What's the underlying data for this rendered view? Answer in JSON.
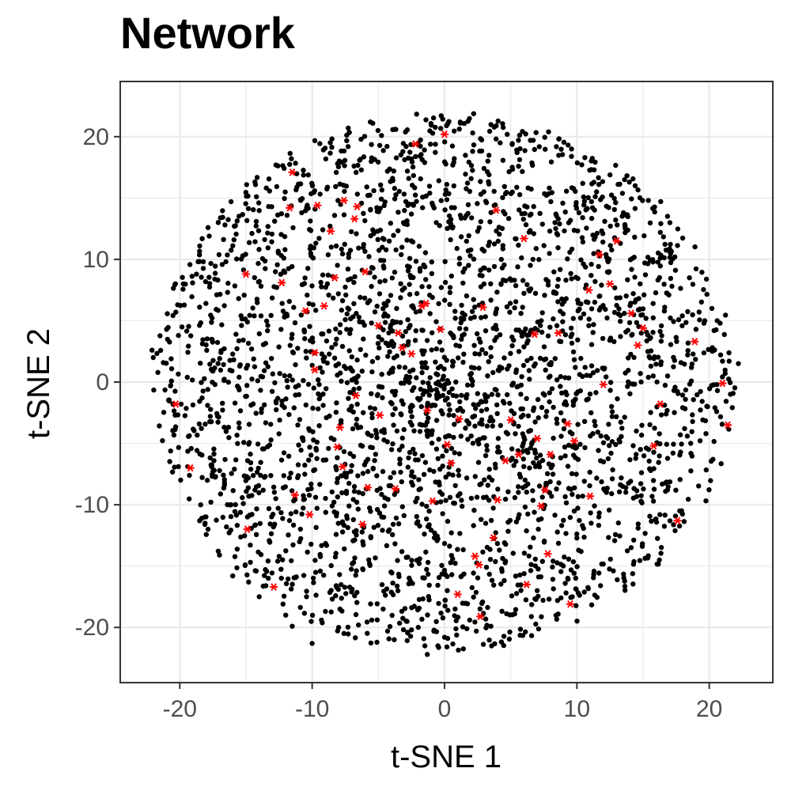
{
  "chart_data": {
    "type": "scatter",
    "title": "Network",
    "xlabel": "t-SNE 1",
    "ylabel": "t-SNE 2",
    "xlim": [
      -24.5,
      24.8
    ],
    "ylim": [
      -24.5,
      24.5
    ],
    "x_ticks": [
      -20,
      -10,
      0,
      10,
      20
    ],
    "y_ticks": [
      -20,
      -10,
      0,
      10,
      20
    ],
    "x_tick_labels": [
      "-20",
      "-10",
      "0",
      "10",
      "20"
    ],
    "y_tick_labels": [
      "-20",
      "-10",
      "0",
      "10",
      "20"
    ],
    "grid": true,
    "colors": {
      "background_points": "#000000",
      "highlight_points": "#ff0000",
      "grid": "#ebebeb",
      "border": "#333333"
    },
    "series": [
      {
        "marker": "dot",
        "color": "#000000",
        "description_n_approx": 3000,
        "distribution": {
          "type": "disc",
          "center": [
            0,
            0
          ],
          "radius": 22
        },
        "x": [
          -22.1,
          -22.0,
          -21.0,
          -20.3,
          -20.1,
          -19.9,
          -19.4,
          -18.5,
          -18.1,
          -17.9,
          -17.0,
          -16.0,
          -15.2,
          -14.8,
          -14.0,
          -13.5,
          -12.2,
          -12.0,
          -11.5,
          -10.0,
          -9.3,
          -9.0,
          -8.0,
          -6.5,
          -5.5,
          -4.3,
          -3.8,
          -2.5,
          -1.3,
          -0.5,
          0.0,
          1.2,
          1.9,
          2.4,
          3.5,
          4.2,
          5.3,
          6.7,
          7.0,
          8.2,
          9.6,
          10.6,
          11.3,
          12.1,
          13.6,
          14.4,
          15.4,
          16.3,
          17.4,
          18.5,
          19.0,
          19.6,
          20.2,
          20.6,
          21.0,
          21.5,
          22.2
        ],
        "y": [
          2.6,
          2.0,
          4.3,
          5.7,
          3.8,
          -1.8,
          -6.9,
          -11.3,
          -11.0,
          -1.9,
          -14.1,
          -15.8,
          -9.9,
          -16.3,
          -17.5,
          -16.6,
          -18.1,
          -19.0,
          -19.9,
          -21.3,
          -19.4,
          -18.7,
          -20.0,
          -19.8,
          -19.4,
          -20.3,
          -21.0,
          -20.2,
          -22.2,
          -21.5,
          -20.8,
          21.1,
          -19.4,
          -20.3,
          -19.9,
          19.5,
          -18.9,
          19.7,
          -17.0,
          -14.6,
          19.0,
          18.3,
          17.3,
          13.1,
          16.5,
          16.0,
          14.8,
          12.2,
          10.2,
          8.5,
          4.3,
          4.8,
          6.0,
          5.0,
          1.7,
          1.7,
          1.5
        ]
      },
      {
        "marker": "asterisk",
        "color": "#ff0000",
        "x": [
          -20.3,
          -19.2,
          -15.0,
          -14.9,
          -12.9,
          -12.3,
          -11.7,
          -11.5,
          -11.3,
          -10.5,
          -9.8,
          -9.6,
          -9.1,
          -8.6,
          -8.3,
          -7.9,
          -7.7,
          -7.6,
          -6.8,
          -6.6,
          -6.2,
          -6.0,
          -5.0,
          -3.7,
          -3.5,
          -2.2,
          -1.7,
          -1.4,
          -0.9,
          -0.3,
          0.0,
          1.0,
          2.3,
          2.6,
          2.7,
          3.9,
          4.0,
          5.0,
          5.6,
          6.0,
          6.2,
          7.0,
          7.6,
          7.8,
          8.0,
          9.5,
          9.8,
          10.9,
          11.0,
          11.7,
          12.0,
          13.0,
          14.1,
          14.6,
          15.0,
          15.8,
          16.3,
          17.6,
          18.9,
          21.0,
          21.4,
          1.1,
          -4.9,
          6.8,
          -8.1,
          9.3,
          -1.3,
          3.7,
          -2.5,
          0.5,
          8.6,
          -6.7,
          12.5,
          -10.2,
          4.6,
          -3.2,
          0.2,
          -5.8,
          7.3,
          -9.8,
          2.9
        ],
        "y": [
          -1.8,
          -7.0,
          8.8,
          -12.0,
          -16.7,
          8.1,
          14.2,
          17.1,
          -9.2,
          5.8,
          1.0,
          14.4,
          6.2,
          12.3,
          8.5,
          -3.7,
          -6.9,
          14.8,
          13.3,
          14.3,
          -11.6,
          9.0,
          4.6,
          -8.7,
          4.0,
          19.4,
          6.2,
          6.4,
          -9.7,
          4.3,
          20.2,
          -17.3,
          -14.2,
          -14.9,
          -19.1,
          14.0,
          -9.6,
          -3.1,
          -5.9,
          11.7,
          -16.5,
          -4.6,
          -8.8,
          -14.0,
          -5.9,
          -18.1,
          -4.8,
          7.5,
          -9.3,
          10.4,
          -0.2,
          11.5,
          5.6,
          3.0,
          4.4,
          -5.2,
          -1.8,
          -11.3,
          3.3,
          -0.1,
          -3.5,
          -3.0,
          -2.7,
          3.9,
          -5.3,
          -3.4,
          -2.3,
          -12.7,
          2.3,
          -6.6,
          4.0,
          -1.1,
          8.0,
          -10.8,
          -6.4,
          2.8,
          -5.1,
          -8.6,
          -10.1,
          2.4,
          6.1
        ]
      }
    ]
  }
}
